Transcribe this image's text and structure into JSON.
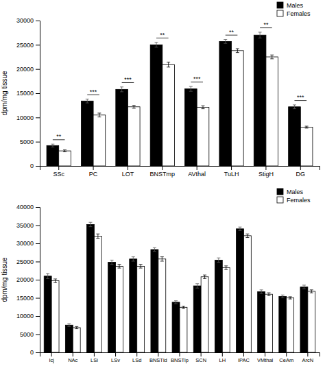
{
  "chart_data": [
    {
      "type": "bar",
      "ylabel": "dpm/mg tissue",
      "categories": [
        "SSc",
        "PC",
        "LOT",
        "BNSTmp",
        "AVthal",
        "TuLH",
        "StigH",
        "DG"
      ],
      "series": [
        {
          "name": "Males",
          "color": "#000000",
          "values": [
            4200,
            13400,
            15800,
            25000,
            15900,
            25700,
            27000,
            12200
          ],
          "errors": [
            300,
            400,
            500,
            500,
            500,
            400,
            600,
            400
          ]
        },
        {
          "name": "Females",
          "color": "#ffffff",
          "values": [
            3100,
            10500,
            12200,
            20900,
            12100,
            23800,
            22500,
            8000
          ],
          "errors": [
            200,
            400,
            300,
            500,
            300,
            400,
            400,
            200
          ]
        }
      ],
      "annotations": [
        "**",
        "***",
        "***",
        "**",
        "***",
        "**",
        "**",
        "***"
      ],
      "ylim": [
        0,
        30000
      ],
      "yticks": [
        0,
        5000,
        10000,
        15000,
        20000,
        25000,
        30000
      ],
      "legend": "upper right"
    },
    {
      "type": "bar",
      "ylabel": "dpm/mg tissue",
      "categories": [
        "Icj",
        "NAc",
        "LSi",
        "LSv",
        "LSd",
        "BNSTld",
        "BNSTlp",
        "SCN",
        "LH",
        "IPAC",
        "VMthal",
        "CeAm",
        "ArcN"
      ],
      "series": [
        {
          "name": "Males",
          "color": "#000000",
          "values": [
            21000,
            7500,
            35200,
            24800,
            25700,
            28300,
            13800,
            18300,
            25400,
            34000,
            16700,
            15400,
            18000
          ],
          "errors": [
            700,
            400,
            600,
            600,
            600,
            500,
            400,
            600,
            600,
            500,
            500,
            400,
            500
          ]
        },
        {
          "name": "Females",
          "color": "#ffffff",
          "values": [
            19700,
            6800,
            32000,
            23700,
            23700,
            25700,
            12400,
            20800,
            23300,
            32100,
            16000,
            15000,
            16800
          ],
          "errors": [
            500,
            300,
            600,
            500,
            500,
            600,
            300,
            500,
            500,
            500,
            400,
            300,
            400
          ]
        }
      ],
      "ylim": [
        0,
        40000
      ],
      "yticks": [
        0,
        5000,
        10000,
        15000,
        20000,
        25000,
        30000,
        35000,
        40000
      ],
      "legend": "upper right"
    }
  ]
}
